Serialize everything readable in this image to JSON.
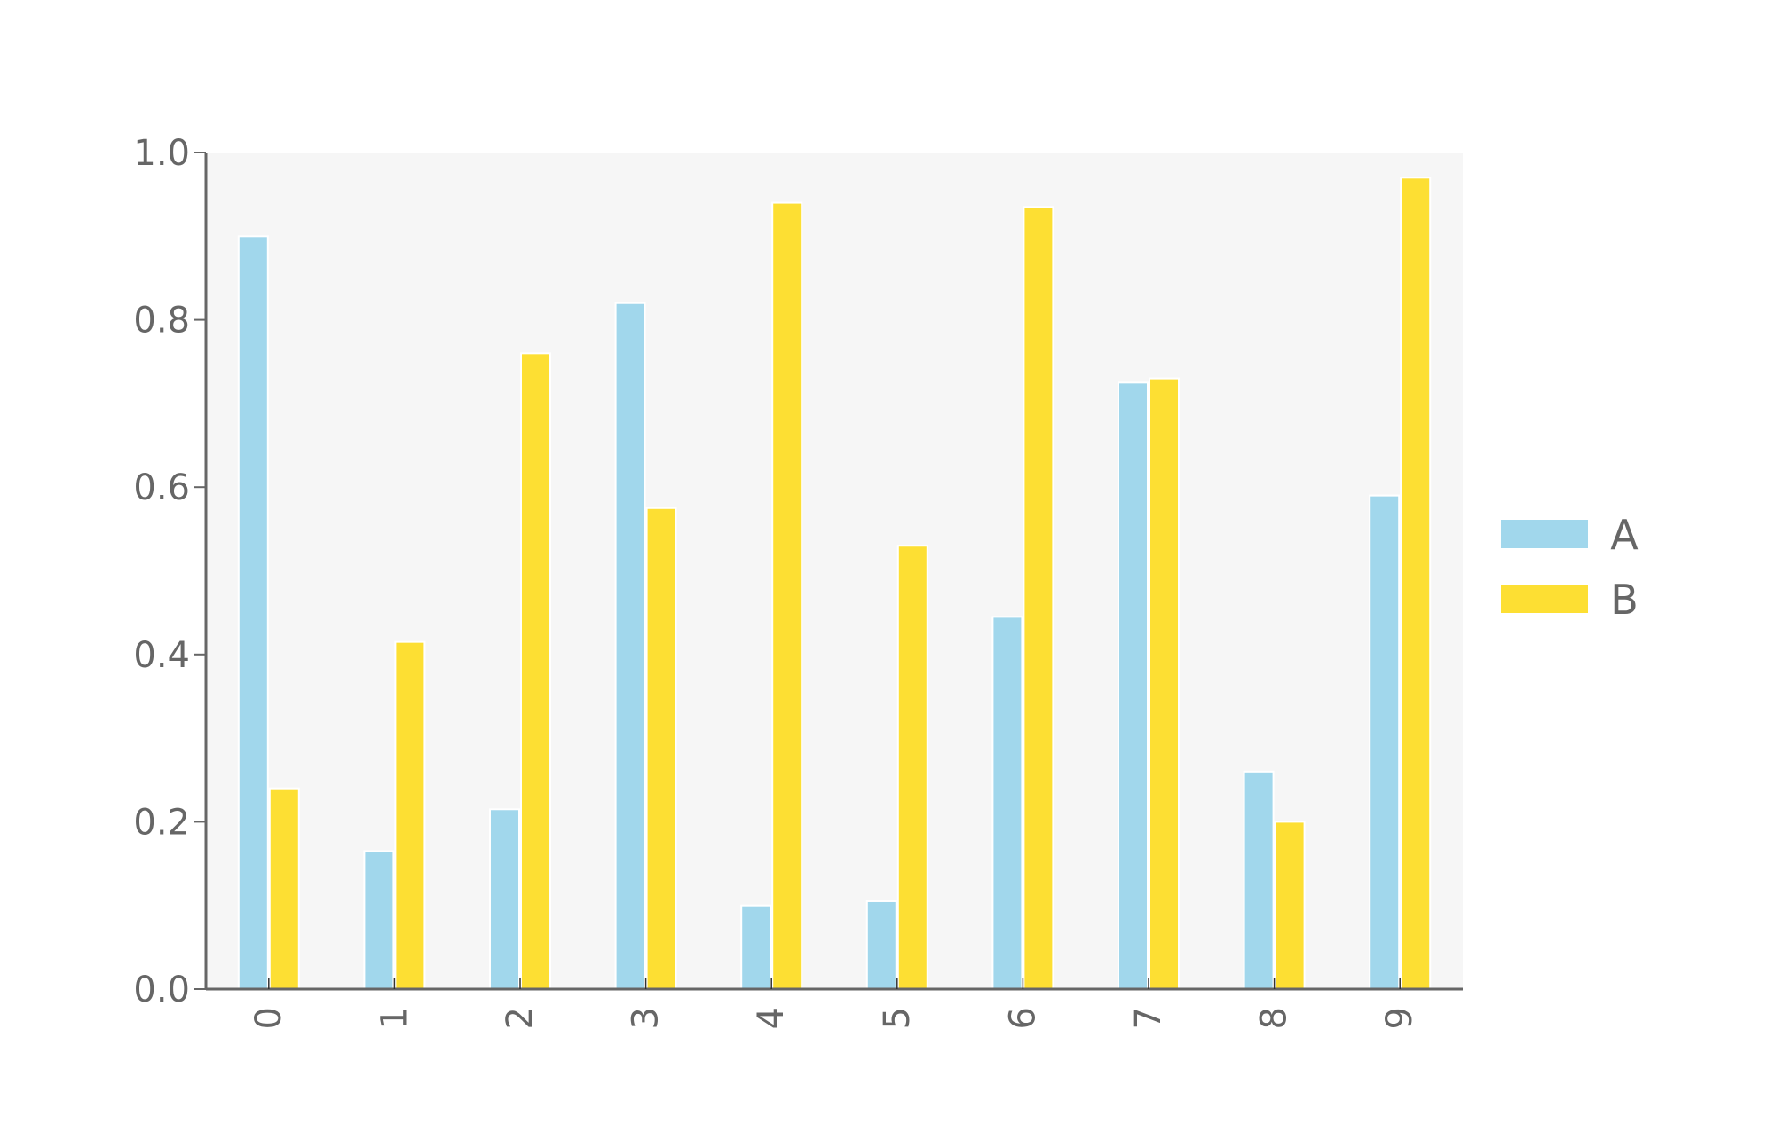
{
  "chart_data": {
    "type": "bar",
    "categories": [
      "0",
      "1",
      "2",
      "3",
      "4",
      "5",
      "6",
      "7",
      "8",
      "9"
    ],
    "series": [
      {
        "name": "A",
        "color": "#a1d7ec",
        "values": [
          0.9,
          0.165,
          0.215,
          0.82,
          0.1,
          0.105,
          0.445,
          0.725,
          0.26,
          0.59
        ]
      },
      {
        "name": "B",
        "color": "#fddf33",
        "values": [
          0.24,
          0.415,
          0.76,
          0.575,
          0.94,
          0.53,
          0.935,
          0.73,
          0.2,
          0.97
        ]
      }
    ],
    "ylim": [
      0,
      1.0
    ],
    "yticks": [
      "0.0",
      "0.2",
      "0.4",
      "0.6",
      "0.8",
      "1.0"
    ],
    "title": "",
    "xlabel": "",
    "ylabel": "",
    "grid": false,
    "legend_position": "right",
    "colors": {
      "plot_background": "#f6f6f6",
      "axis": "#666666",
      "text": "#666666"
    }
  }
}
